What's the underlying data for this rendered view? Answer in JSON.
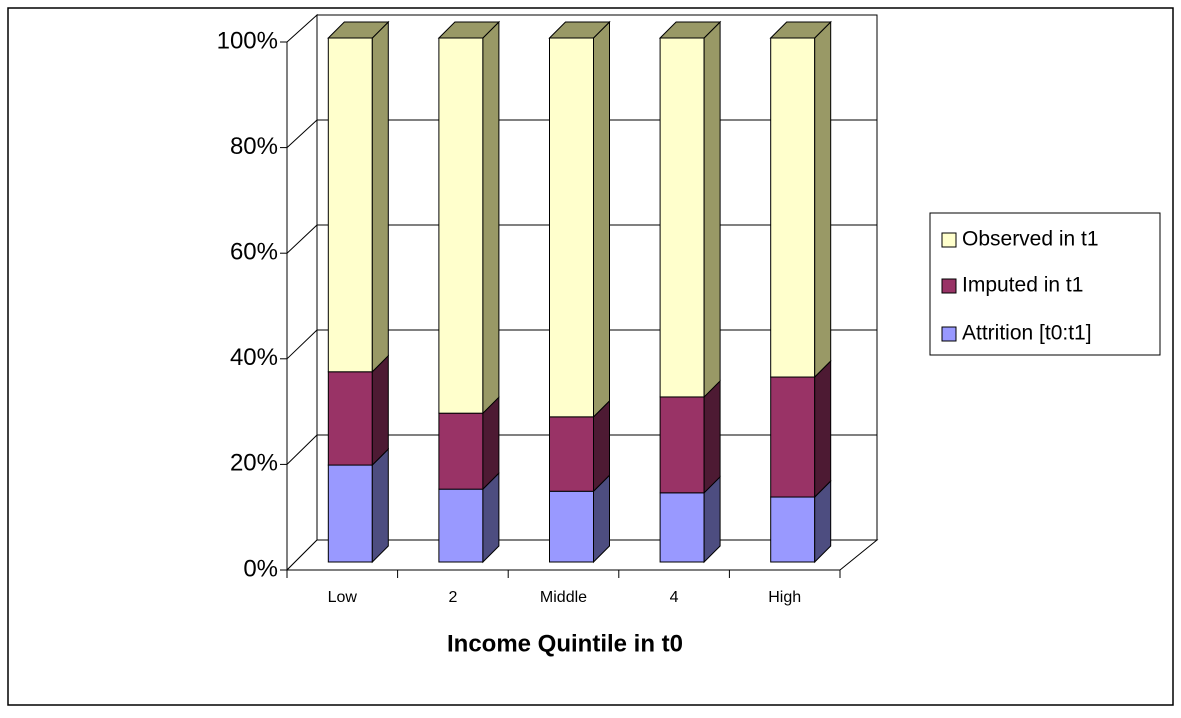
{
  "chart_data": {
    "type": "bar3d_stacked",
    "x_label": "Income Quintile in t0",
    "categories": [
      "Low",
      "2",
      "Middle",
      "4",
      "High"
    ],
    "series": [
      {
        "name": "Attrition [t0:t1]",
        "color": "#9999ff",
        "side": "#4d4d80",
        "values": [
          18.5,
          13.9,
          13.5,
          13.2,
          12.4
        ]
      },
      {
        "name": "Imputed in t1",
        "color": "#993366",
        "side": "#4d1a33",
        "values": [
          17.8,
          14.5,
          14.2,
          18.3,
          22.9
        ]
      },
      {
        "name": "Observed in t1",
        "color": "#ffffcc",
        "side": "#999966",
        "values": [
          63.7,
          71.6,
          72.3,
          68.5,
          64.7
        ]
      }
    ],
    "ylim": [
      0,
      100
    ],
    "yticks": [
      {
        "value": 0,
        "label": "0%"
      },
      {
        "value": 20,
        "label": "20%"
      },
      {
        "value": 40,
        "label": "40%"
      },
      {
        "value": 60,
        "label": "60%"
      },
      {
        "value": 80,
        "label": "80%"
      },
      {
        "value": 100,
        "label": "100%"
      }
    ],
    "grid": true
  }
}
